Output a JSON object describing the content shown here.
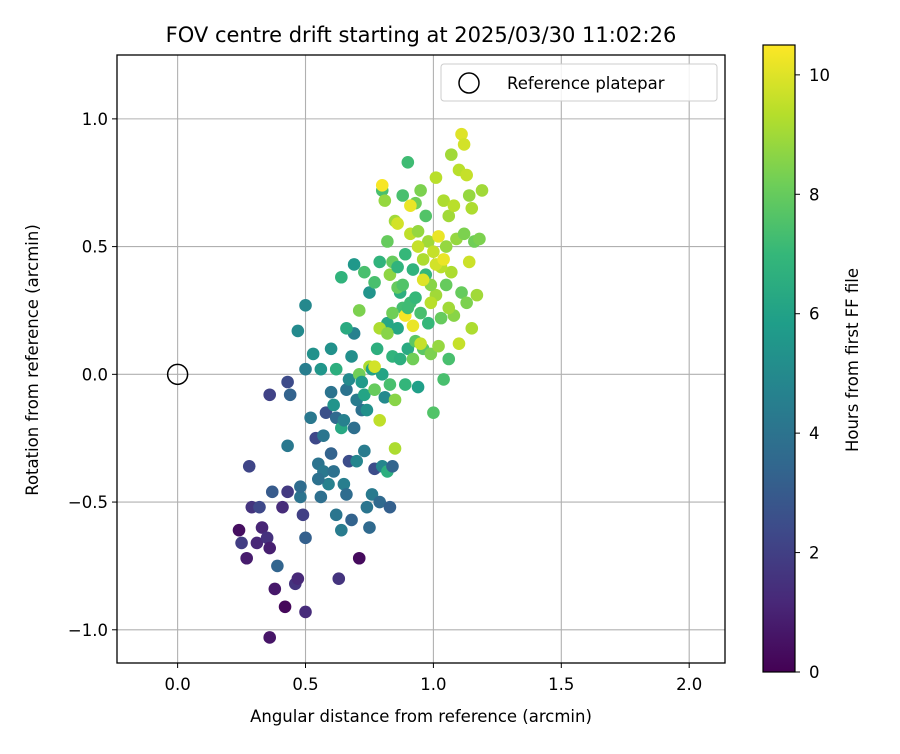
{
  "chart_data": {
    "type": "scatter",
    "title": "FOV centre drift starting at 2025/03/30 11:02:26",
    "xlabel": "Angular distance from reference (arcmin)",
    "ylabel": "Rotation from reference (arcmin)",
    "xlim": [
      -0.237,
      2.14
    ],
    "ylim": [
      -1.13,
      1.25
    ],
    "xticks": [
      0.0,
      0.5,
      1.0,
      1.5,
      2.0
    ],
    "xtick_labels": [
      "0.0",
      "0.5",
      "1.0",
      "1.5",
      "2.0"
    ],
    "yticks": [
      -1.0,
      -0.5,
      0.0,
      0.5,
      1.0
    ],
    "ytick_labels": [
      "−1.0",
      "−0.5",
      "0.0",
      "0.5",
      "1.0"
    ],
    "grid": true,
    "legend": {
      "placement": "top-right",
      "entries": [
        "Reference platepar"
      ]
    },
    "reference_point": {
      "x": 0.0,
      "y": 0.0,
      "marker": "open-circle"
    },
    "colorbar": {
      "label": "Hours from first FF file",
      "range": [
        0,
        10.5
      ],
      "ticks": [
        0,
        2,
        4,
        6,
        8,
        10
      ],
      "tick_labels": [
        "0",
        "2",
        "4",
        "6",
        "8",
        "10"
      ],
      "colormap": "viridis"
    },
    "colormap_stops": [
      "#440154",
      "#482878",
      "#3e4989",
      "#31688e",
      "#26828e",
      "#1f9e89",
      "#35b779",
      "#6ece58",
      "#b5de2b",
      "#fde725"
    ],
    "points": [
      [
        0.24,
        -0.61,
        0.4
      ],
      [
        0.25,
        -0.66,
        1.9
      ],
      [
        0.27,
        -0.72,
        0.8
      ],
      [
        0.28,
        -0.36,
        2.2
      ],
      [
        0.29,
        -0.52,
        1.6
      ],
      [
        0.31,
        -0.66,
        1.2
      ],
      [
        0.32,
        -0.52,
        2.3
      ],
      [
        0.33,
        -0.6,
        1.1
      ],
      [
        0.35,
        -0.64,
        1.5
      ],
      [
        0.36,
        -0.68,
        0.9
      ],
      [
        0.36,
        -1.03,
        0.6
      ],
      [
        0.37,
        -0.46,
        3.0
      ],
      [
        0.38,
        -0.84,
        0.7
      ],
      [
        0.39,
        -0.75,
        3.4
      ],
      [
        0.41,
        -0.52,
        1.3
      ],
      [
        0.42,
        -0.91,
        0.2
      ],
      [
        0.43,
        -0.46,
        1.8
      ],
      [
        0.46,
        -0.82,
        1.6
      ],
      [
        0.47,
        -0.8,
        1.2
      ],
      [
        0.48,
        -0.48,
        4.0
      ],
      [
        0.49,
        -0.55,
        2.0
      ],
      [
        0.5,
        -0.93,
        1.3
      ],
      [
        0.5,
        -0.64,
        3.2
      ],
      [
        0.36,
        -0.08,
        2.1
      ],
      [
        0.43,
        -0.03,
        2.4
      ],
      [
        0.44,
        -0.08,
        3.3
      ],
      [
        0.43,
        -0.28,
        4.2
      ],
      [
        0.48,
        -0.44,
        3.7
      ],
      [
        0.47,
        0.17,
        5.0
      ],
      [
        0.5,
        0.02,
        4.5
      ],
      [
        0.52,
        -0.17,
        4.2
      ],
      [
        0.53,
        0.08,
        5.3
      ],
      [
        0.5,
        0.27,
        4.9
      ],
      [
        0.54,
        -0.25,
        2.3
      ],
      [
        0.55,
        -0.35,
        4.0
      ],
      [
        0.56,
        -0.48,
        3.8
      ],
      [
        0.57,
        -0.38,
        4.2
      ],
      [
        0.58,
        -0.15,
        2.6
      ],
      [
        0.59,
        -0.43,
        4.6
      ],
      [
        0.6,
        -0.31,
        3.3
      ],
      [
        0.61,
        -0.38,
        3.9
      ],
      [
        0.62,
        -0.17,
        3.6
      ],
      [
        0.62,
        -0.55,
        4.1
      ],
      [
        0.63,
        -0.8,
        1.6
      ],
      [
        0.64,
        -0.61,
        4.4
      ],
      [
        0.65,
        -0.43,
        4.5
      ],
      [
        0.66,
        -0.47,
        3.7
      ],
      [
        0.67,
        -0.34,
        2.5
      ],
      [
        0.68,
        -0.57,
        3.3
      ],
      [
        0.69,
        -0.21,
        3.8
      ],
      [
        0.7,
        -0.34,
        4.8
      ],
      [
        0.71,
        -0.72,
        0.3
      ],
      [
        0.72,
        -0.14,
        3.9
      ],
      [
        0.73,
        -0.3,
        4.4
      ],
      [
        0.74,
        -0.52,
        4.1
      ],
      [
        0.75,
        -0.6,
        3.6
      ],
      [
        0.76,
        -0.47,
        4.3
      ],
      [
        0.77,
        -0.37,
        2.5
      ],
      [
        0.79,
        -0.5,
        3.6
      ],
      [
        0.8,
        -0.36,
        4.8
      ],
      [
        0.82,
        -0.38,
        6.6
      ],
      [
        0.83,
        -0.52,
        3.2
      ],
      [
        0.84,
        -0.36,
        3.4
      ],
      [
        0.85,
        -0.29,
        9.2
      ],
      [
        0.55,
        -0.41,
        3.9
      ],
      [
        0.57,
        -0.24,
        4.1
      ],
      [
        0.6,
        -0.07,
        4.0
      ],
      [
        0.61,
        -0.12,
        5.4
      ],
      [
        0.56,
        0.02,
        5.5
      ],
      [
        0.62,
        0.02,
        6.6
      ],
      [
        0.64,
        -0.21,
        6.3
      ],
      [
        0.65,
        -0.18,
        4.6
      ],
      [
        0.66,
        -0.06,
        4.0
      ],
      [
        0.67,
        -0.02,
        5.0
      ],
      [
        0.68,
        0.07,
        5.2
      ],
      [
        0.69,
        0.16,
        4.6
      ],
      [
        0.7,
        -0.1,
        4.4
      ],
      [
        0.71,
        0.0,
        8.2
      ],
      [
        0.72,
        -0.03,
        5.7
      ],
      [
        0.73,
        -0.08,
        6.1
      ],
      [
        0.74,
        -0.14,
        5.3
      ],
      [
        0.75,
        0.03,
        9.2
      ],
      [
        0.76,
        0.02,
        6.0
      ],
      [
        0.77,
        -0.06,
        8.0
      ],
      [
        0.78,
        0.1,
        6.6
      ],
      [
        0.79,
        -0.18,
        9.5
      ],
      [
        0.8,
        0.0,
        6.1
      ],
      [
        0.81,
        -0.09,
        5.0
      ],
      [
        0.82,
        0.2,
        6.2
      ],
      [
        0.83,
        -0.04,
        7.4
      ],
      [
        0.84,
        0.07,
        6.8
      ],
      [
        0.85,
        -0.1,
        8.6
      ],
      [
        0.86,
        0.18,
        6.2
      ],
      [
        0.87,
        0.06,
        6.6
      ],
      [
        0.88,
        0.26,
        7.3
      ],
      [
        0.89,
        -0.04,
        6.9
      ],
      [
        0.9,
        0.1,
        6.4
      ],
      [
        0.91,
        0.28,
        7.2
      ],
      [
        0.92,
        0.06,
        8.2
      ],
      [
        0.93,
        0.13,
        7.8
      ],
      [
        0.94,
        -0.05,
        5.9
      ],
      [
        0.95,
        0.24,
        7.4
      ],
      [
        0.96,
        0.1,
        7.8
      ],
      [
        0.97,
        0.39,
        7.0
      ],
      [
        0.98,
        0.2,
        7.0
      ],
      [
        0.99,
        0.08,
        8.4
      ],
      [
        1.0,
        -0.15,
        7.6
      ],
      [
        1.01,
        0.31,
        9.0
      ],
      [
        1.02,
        0.11,
        8.8
      ],
      [
        1.03,
        0.22,
        8.0
      ],
      [
        1.04,
        -0.02,
        7.4
      ],
      [
        1.05,
        0.35,
        8.0
      ],
      [
        1.06,
        0.06,
        7.4
      ],
      [
        1.07,
        0.4,
        9.2
      ],
      [
        1.08,
        0.23,
        8.6
      ],
      [
        1.09,
        0.53,
        8.8
      ],
      [
        1.1,
        0.12,
        9.6
      ],
      [
        1.11,
        0.32,
        8.0
      ],
      [
        1.12,
        0.55,
        8.4
      ],
      [
        1.13,
        0.28,
        8.4
      ],
      [
        1.14,
        0.44,
        9.7
      ],
      [
        1.15,
        0.18,
        9.2
      ],
      [
        1.16,
        0.52,
        8.2
      ],
      [
        1.17,
        0.31,
        9.0
      ],
      [
        1.18,
        0.53,
        8.4
      ],
      [
        1.19,
        0.72,
        9.0
      ],
      [
        0.6,
        0.1,
        5.3
      ],
      [
        0.64,
        0.38,
        6.8
      ],
      [
        0.66,
        0.18,
        6.4
      ],
      [
        0.69,
        0.43,
        5.6
      ],
      [
        0.71,
        0.25,
        8.4
      ],
      [
        0.73,
        0.4,
        7.4
      ],
      [
        0.75,
        0.32,
        5.4
      ],
      [
        0.77,
        0.36,
        7.4
      ],
      [
        0.79,
        0.44,
        6.8
      ],
      [
        0.8,
        0.72,
        7.4
      ],
      [
        0.81,
        0.68,
        8.8
      ],
      [
        0.82,
        0.52,
        8.0
      ],
      [
        0.83,
        0.39,
        8.7
      ],
      [
        0.84,
        0.44,
        8.0
      ],
      [
        0.85,
        0.6,
        9.0
      ],
      [
        0.86,
        0.42,
        6.8
      ],
      [
        0.87,
        0.32,
        6.6
      ],
      [
        0.88,
        0.7,
        7.4
      ],
      [
        0.89,
        0.47,
        7.0
      ],
      [
        0.9,
        0.83,
        7.2
      ],
      [
        0.91,
        0.55,
        9.5
      ],
      [
        0.92,
        0.41,
        6.8
      ],
      [
        0.93,
        0.67,
        8.2
      ],
      [
        0.94,
        0.56,
        8.8
      ],
      [
        0.95,
        0.72,
        8.4
      ],
      [
        0.96,
        0.45,
        9.2
      ],
      [
        0.97,
        0.62,
        7.6
      ],
      [
        0.98,
        0.52,
        9.0
      ],
      [
        0.99,
        0.35,
        8.6
      ],
      [
        1.0,
        0.48,
        9.6
      ],
      [
        1.01,
        0.77,
        9.4
      ],
      [
        1.02,
        0.54,
        10.2
      ],
      [
        1.03,
        0.42,
        9.4
      ],
      [
        1.04,
        0.68,
        9.2
      ],
      [
        1.05,
        0.5,
        8.8
      ],
      [
        1.06,
        0.62,
        9.0
      ],
      [
        1.07,
        0.86,
        9.0
      ],
      [
        1.08,
        0.66,
        9.4
      ],
      [
        1.1,
        0.8,
        9.4
      ],
      [
        1.11,
        0.94,
        10.0
      ],
      [
        1.12,
        0.9,
        9.8
      ],
      [
        1.13,
        0.78,
        9.6
      ],
      [
        1.14,
        0.7,
        8.8
      ],
      [
        1.15,
        0.65,
        9.2
      ],
      [
        0.8,
        0.74,
        10.4
      ],
      [
        0.86,
        0.59,
        9.8
      ],
      [
        0.91,
        0.66,
        10.2
      ],
      [
        0.94,
        0.5,
        9.6
      ],
      [
        0.96,
        0.37,
        10.0
      ],
      [
        0.99,
        0.28,
        9.4
      ],
      [
        1.01,
        0.43,
        9.8
      ],
      [
        1.04,
        0.45,
        10.2
      ],
      [
        1.06,
        0.26,
        9.0
      ],
      [
        0.89,
        0.23,
        10.4
      ],
      [
        0.92,
        0.19,
        10.2
      ],
      [
        0.95,
        0.12,
        9.6
      ],
      [
        0.77,
        0.03,
        9.8
      ],
      [
        0.79,
        0.18,
        9.2
      ],
      [
        0.82,
        0.16,
        8.6
      ],
      [
        0.84,
        0.24,
        8.2
      ],
      [
        0.86,
        0.34,
        8.0
      ],
      [
        0.88,
        0.35,
        7.6
      ],
      [
        0.9,
        0.26,
        7.2
      ],
      [
        0.93,
        0.3,
        7.0
      ]
    ]
  }
}
